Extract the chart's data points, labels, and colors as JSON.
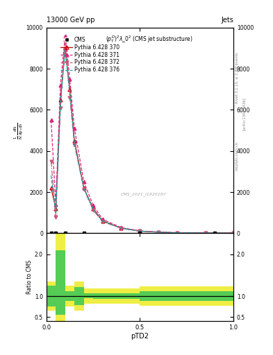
{
  "title_top": "13000 GeV pp",
  "title_right": "Jets",
  "plot_title": "$(p_T^D)^2\\lambda\\_0^2$ (CMS jet substructure)",
  "xlabel": "pTD2",
  "watermark": "CMS_2021_I1920187",
  "rivet_text": "Rivet 3.1.10, ≥ 2.8M events",
  "arxiv_text": "[arXiv:1306.3436]",
  "mcplots_text": "mcplots.cern.ch",
  "x_vals": [
    0.025,
    0.05,
    0.075,
    0.1,
    0.125,
    0.15,
    0.2,
    0.25,
    0.3,
    0.4,
    0.5,
    0.6,
    0.7,
    0.85,
    1.0
  ],
  "py370_y": [
    2200,
    1200,
    6500,
    9000,
    7000,
    4500,
    2200,
    1200,
    600,
    250,
    100,
    50,
    20,
    10,
    5
  ],
  "py371_y": [
    5500,
    1400,
    7200,
    9600,
    7500,
    5100,
    2500,
    1350,
    680,
    270,
    115,
    58,
    24,
    12,
    5
  ],
  "py372_y": [
    3500,
    800,
    6100,
    9300,
    6600,
    4300,
    2150,
    1120,
    560,
    235,
    98,
    49,
    20,
    10,
    4
  ],
  "py376_y": [
    2800,
    1000,
    6300,
    8900,
    6900,
    4400,
    2200,
    1170,
    590,
    245,
    103,
    52,
    21,
    11,
    4
  ],
  "cms_x": [
    0.025,
    0.05,
    0.1,
    0.2,
    0.5,
    0.9
  ],
  "cms_y": [
    0,
    0,
    0,
    0,
    0,
    15
  ],
  "ratio_x_edges": [
    0.0,
    0.05,
    0.1,
    0.15,
    0.2,
    0.25,
    0.3,
    0.5,
    1.0
  ],
  "ratio_green_lo": [
    0.75,
    0.55,
    0.88,
    0.78,
    0.95,
    0.93,
    0.93,
    0.88,
    0.88
  ],
  "ratio_green_hi": [
    1.25,
    2.1,
    1.12,
    1.22,
    1.07,
    1.07,
    1.07,
    1.12,
    1.12
  ],
  "ratio_yellow_lo": [
    0.65,
    0.38,
    0.75,
    0.65,
    0.82,
    0.82,
    0.82,
    0.77,
    0.77
  ],
  "ratio_yellow_hi": [
    1.35,
    2.5,
    1.25,
    1.35,
    1.18,
    1.18,
    1.18,
    1.23,
    1.23
  ],
  "color_370": "#cc0000",
  "color_371": "#dd2277",
  "color_372": "#cc5577",
  "color_376": "#00aaaa",
  "color_cms": "#000000",
  "color_green": "#55cc55",
  "color_yellow": "#eeee44",
  "yticks_main": [
    0,
    2000,
    4000,
    6000,
    8000,
    10000
  ],
  "ylim_main": [
    0,
    10000
  ],
  "ylim_ratio": [
    0.4,
    2.5
  ],
  "yticks_ratio": [
    0.5,
    1.0,
    2.0
  ],
  "xlim": [
    0.0,
    1.0
  ],
  "xticks": [
    0.0,
    0.5,
    1.0
  ]
}
